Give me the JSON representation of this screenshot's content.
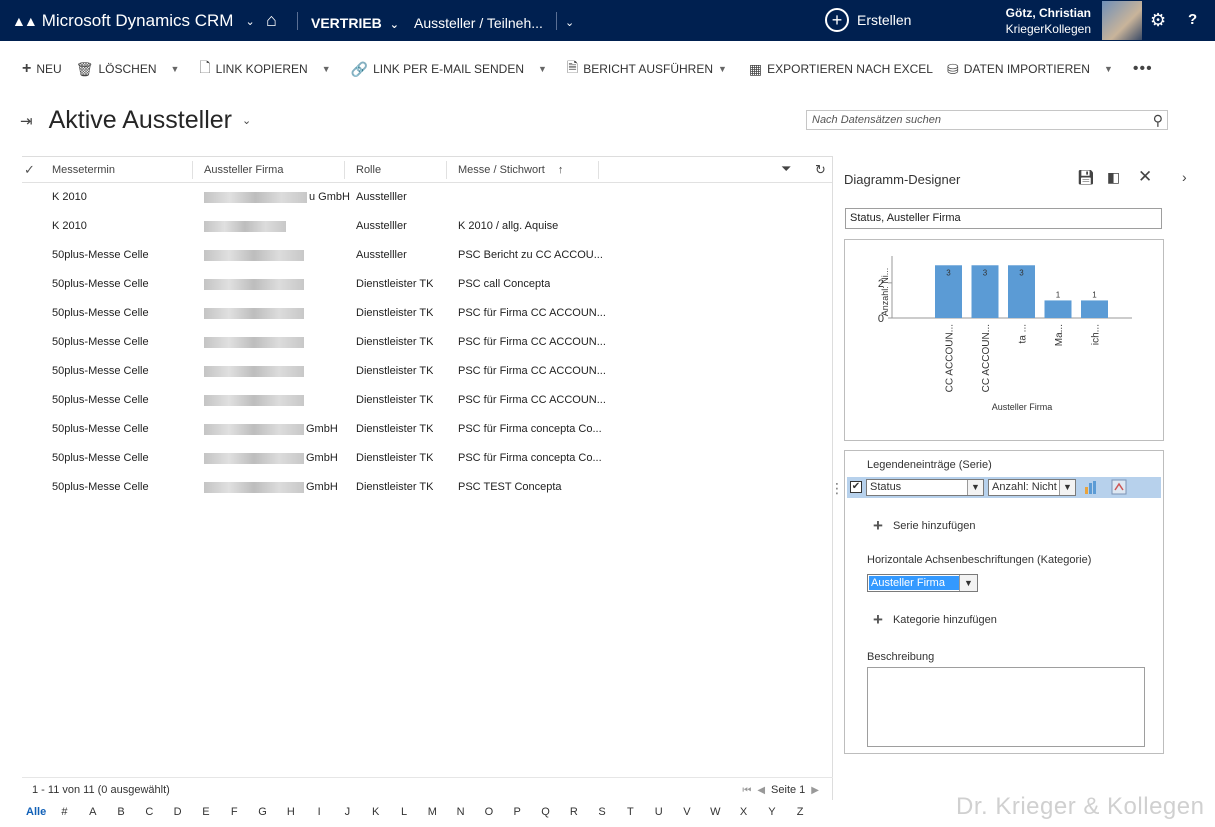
{
  "topnav": {
    "app_name": "Microsoft Dynamics CRM",
    "area": "VERTRIEB",
    "entity": "Aussteller / Teilneh...",
    "create_label": "Erstellen",
    "user_name": "Götz, Christian",
    "user_org": "KriegerKollegen",
    "help": "?"
  },
  "commands": {
    "new": "NEU",
    "delete": "LÖSCHEN",
    "copy_link": "LINK KOPIEREN",
    "email_link": "LINK PER E-MAIL SENDEN",
    "run_report": "BERICHT AUSFÜHREN",
    "export_excel": "EXPORTIEREN NACH EXCEL",
    "import_data": "DATEN IMPORTIEREN",
    "more": "•••"
  },
  "view": {
    "title": "Aktive Aussteller",
    "search_placeholder": "Nach Datensätzen suchen"
  },
  "grid": {
    "columns": [
      "Messetermin",
      "Aussteller Firma",
      "Rolle",
      "Messe / Stichwort"
    ],
    "rows": [
      {
        "termin": "K 2010",
        "firma_suffix": "u GmbH",
        "rolle": "Ausstelller",
        "messe": ""
      },
      {
        "termin": "K 2010",
        "firma_suffix": "",
        "rolle": "Ausstelller",
        "messe": "K 2010 / allg. Aquise"
      },
      {
        "termin": "50plus-Messe Celle",
        "firma_suffix": "",
        "rolle": "Ausstelller",
        "messe": "PSC Bericht zu CC ACCOU..."
      },
      {
        "termin": "50plus-Messe Celle",
        "firma_suffix": "",
        "rolle": "Dienstleister TK",
        "messe": "PSC call Concepta"
      },
      {
        "termin": "50plus-Messe Celle",
        "firma_suffix": "",
        "rolle": "Dienstleister TK",
        "messe": "PSC für Firma CC ACCOUN..."
      },
      {
        "termin": "50plus-Messe Celle",
        "firma_suffix": "",
        "rolle": "Dienstleister TK",
        "messe": "PSC für Firma CC ACCOUN..."
      },
      {
        "termin": "50plus-Messe Celle",
        "firma_suffix": "",
        "rolle": "Dienstleister TK",
        "messe": "PSC für Firma CC ACCOUN..."
      },
      {
        "termin": "50plus-Messe Celle",
        "firma_suffix": "",
        "rolle": "Dienstleister TK",
        "messe": "PSC für Firma CC ACCOUN..."
      },
      {
        "termin": "50plus-Messe Celle",
        "firma_suffix": "GmbH",
        "rolle": "Dienstleister TK",
        "messe": "PSC für Firma concepta Co..."
      },
      {
        "termin": "50plus-Messe Celle",
        "firma_suffix": "GmbH",
        "rolle": "Dienstleister TK",
        "messe": "PSC für Firma concepta Co..."
      },
      {
        "termin": "50plus-Messe Celle",
        "firma_suffix": "GmbH",
        "rolle": "Dienstleister TK",
        "messe": "PSC TEST Concepta"
      }
    ],
    "count_text": "1 - 11  von 11 (0 ausgewählt)",
    "page_label": "Seite 1",
    "alphabet": [
      "Alle",
      "#",
      "A",
      "B",
      "C",
      "D",
      "E",
      "F",
      "G",
      "H",
      "I",
      "J",
      "K",
      "L",
      "M",
      "N",
      "O",
      "P",
      "Q",
      "R",
      "S",
      "T",
      "U",
      "V",
      "W",
      "X",
      "Y",
      "Z"
    ]
  },
  "designer": {
    "title": "Diagramm-Designer",
    "chart_name": "Status, Austeller Firma",
    "series_label": "Legendeneinträge (Serie)",
    "series_field": "Status",
    "series_agg": "Anzahl: Nicht",
    "add_series": "Serie hinzufügen",
    "category_label": "Horizontale Achsenbeschriftungen (Kategorie)",
    "category_field": "Austeller Firma",
    "add_category": "Kategorie hinzufügen",
    "description_label": "Beschreibung"
  },
  "chart_data": {
    "type": "bar",
    "categories": [
      "CC ACCOUN...",
      "CC ACCOUN...",
      "ta ...",
      "Ma...",
      "ich..."
    ],
    "values": [
      3,
      3,
      3,
      1,
      1
    ],
    "xlabel": "Austeller Firma",
    "ylabel": "Anzahl: Ni...",
    "yticks": [
      0,
      2
    ],
    "ylim": [
      0,
      3.3
    ],
    "bar_color": "#5b9bd5"
  },
  "watermark": "Dr. Krieger & Kollegen"
}
